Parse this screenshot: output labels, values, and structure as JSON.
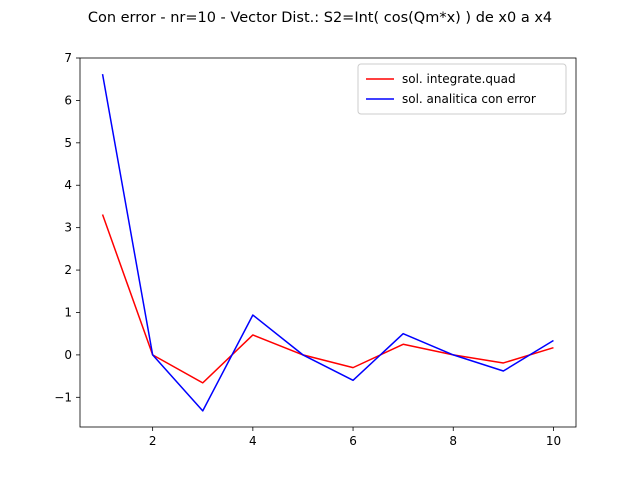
{
  "chart_data": {
    "type": "line",
    "title": "Con error - nr=10 - Vector Dist.: S2=Int( cos(Qm*x) ) de x0 a x4",
    "xlabel": "",
    "ylabel": "",
    "xlim": [
      0.55,
      10.45
    ],
    "ylim": [
      -1.7,
      7.0
    ],
    "xticks": [
      2,
      4,
      6,
      8,
      10
    ],
    "yticks": [
      -1,
      0,
      1,
      2,
      3,
      4,
      5,
      6,
      7
    ],
    "ytick_labels": [
      "−1",
      "0",
      "1",
      "2",
      "3",
      "4",
      "5",
      "6",
      "7"
    ],
    "grid": false,
    "legend_position": "top-right",
    "x": [
      1,
      2,
      3,
      4,
      5,
      6,
      7,
      8,
      9,
      10
    ],
    "series": [
      {
        "name": "sol. integrate.quad",
        "color": "#ff0000",
        "values": [
          3.31,
          0.0,
          -0.66,
          0.47,
          0.0,
          -0.3,
          0.25,
          0.0,
          -0.19,
          0.17
        ]
      },
      {
        "name": "sol. analitica con error",
        "color": "#0000ff",
        "values": [
          6.62,
          0.0,
          -1.32,
          0.94,
          0.0,
          -0.6,
          0.5,
          0.0,
          -0.38,
          0.34
        ]
      }
    ]
  }
}
